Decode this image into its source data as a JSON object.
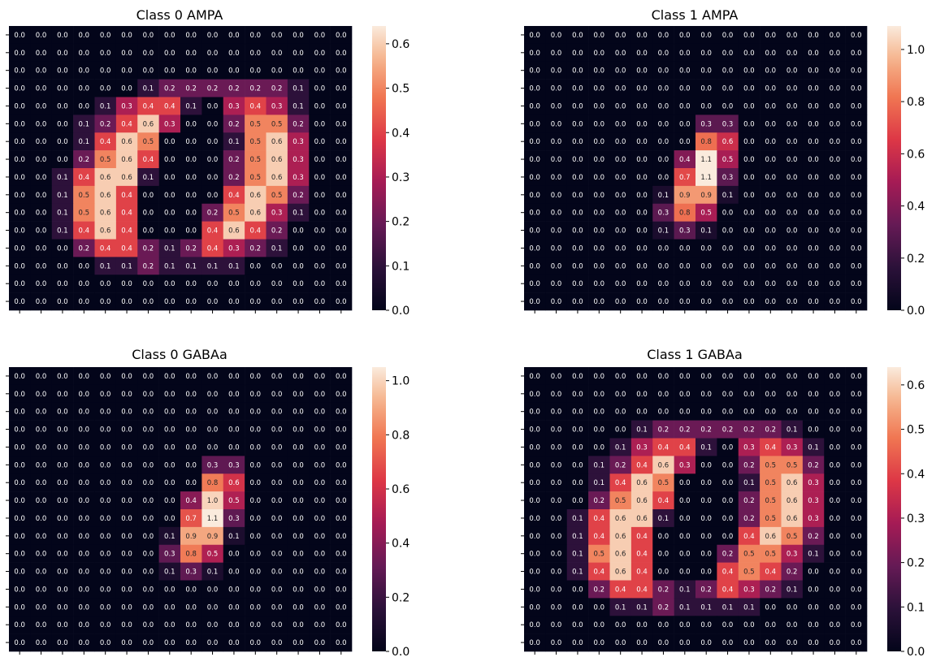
{
  "chart_data": [
    {
      "type": "heatmap",
      "title": "Class 0 AMPA",
      "colormap": "rocket",
      "vmin": 0.0,
      "vmax": 0.64,
      "colorbar_ticks": [
        0.0,
        0.1,
        0.2,
        0.3,
        0.4,
        0.5,
        0.6
      ],
      "colorbar_tick_labels": [
        "0.0",
        "0.1",
        "0.2",
        "0.3",
        "0.4",
        "0.5",
        "0.6"
      ],
      "values": [
        [
          0,
          0,
          0,
          0,
          0,
          0,
          0,
          0,
          0,
          0,
          0,
          0,
          0,
          0,
          0,
          0
        ],
        [
          0,
          0,
          0,
          0,
          0,
          0,
          0,
          0,
          0,
          0,
          0,
          0,
          0,
          0,
          0,
          0
        ],
        [
          0,
          0,
          0,
          0,
          0,
          0,
          0,
          0,
          0,
          0,
          0,
          0,
          0,
          0,
          0,
          0
        ],
        [
          0,
          0,
          0,
          0,
          0,
          0,
          0.1,
          0.2,
          0.2,
          0.2,
          0.2,
          0.2,
          0.2,
          0.1,
          0,
          0
        ],
        [
          0,
          0,
          0,
          0,
          0.1,
          0.3,
          0.4,
          0.4,
          0.1,
          0,
          0.3,
          0.4,
          0.3,
          0.1,
          0,
          0
        ],
        [
          0,
          0,
          0,
          0.1,
          0.2,
          0.4,
          0.6,
          0.3,
          0,
          0,
          0.2,
          0.5,
          0.5,
          0.2,
          0,
          0
        ],
        [
          0,
          0,
          0,
          0.1,
          0.4,
          0.6,
          0.5,
          0,
          0,
          0,
          0.1,
          0.5,
          0.6,
          0.3,
          0,
          0
        ],
        [
          0,
          0,
          0,
          0.2,
          0.5,
          0.6,
          0.4,
          0,
          0,
          0,
          0.2,
          0.5,
          0.6,
          0.3,
          0,
          0
        ],
        [
          0,
          0,
          0.1,
          0.4,
          0.6,
          0.6,
          0.1,
          0,
          0,
          0,
          0.2,
          0.5,
          0.6,
          0.3,
          0,
          0
        ],
        [
          0,
          0,
          0.1,
          0.5,
          0.6,
          0.4,
          0,
          0,
          0,
          0,
          0.4,
          0.6,
          0.5,
          0.2,
          0,
          0
        ],
        [
          0,
          0,
          0.1,
          0.5,
          0.6,
          0.4,
          0,
          0,
          0,
          0.2,
          0.5,
          0.6,
          0.3,
          0.1,
          0,
          0
        ],
        [
          0,
          0,
          0.1,
          0.4,
          0.6,
          0.4,
          0,
          0,
          0,
          0.4,
          0.6,
          0.4,
          0.2,
          0,
          0,
          0
        ],
        [
          0,
          0,
          0,
          0.2,
          0.4,
          0.4,
          0.2,
          0.1,
          0.2,
          0.4,
          0.3,
          0.2,
          0.1,
          0,
          0,
          0
        ],
        [
          0,
          0,
          0,
          0,
          0.1,
          0.1,
          0.2,
          0.1,
          0.1,
          0.1,
          0.1,
          0,
          0,
          0,
          0,
          0
        ],
        [
          0,
          0,
          0,
          0,
          0,
          0,
          0,
          0,
          0,
          0,
          0,
          0,
          0,
          0,
          0,
          0
        ],
        [
          0,
          0,
          0,
          0,
          0,
          0,
          0,
          0,
          0,
          0,
          0,
          0,
          0,
          0,
          0,
          0
        ]
      ]
    },
    {
      "type": "heatmap",
      "title": "Class 1 AMPA",
      "colormap": "rocket",
      "vmin": 0.0,
      "vmax": 1.09,
      "colorbar_ticks": [
        0.0,
        0.2,
        0.4,
        0.6,
        0.8,
        1.0
      ],
      "colorbar_tick_labels": [
        "0.0",
        "0.2",
        "0.4",
        "0.6",
        "0.8",
        "1.0"
      ],
      "values": [
        [
          0,
          0,
          0,
          0,
          0,
          0,
          0,
          0,
          0,
          0,
          0,
          0,
          0,
          0,
          0,
          0
        ],
        [
          0,
          0,
          0,
          0,
          0,
          0,
          0,
          0,
          0,
          0,
          0,
          0,
          0,
          0,
          0,
          0
        ],
        [
          0,
          0,
          0,
          0,
          0,
          0,
          0,
          0,
          0,
          0,
          0,
          0,
          0,
          0,
          0,
          0
        ],
        [
          0,
          0,
          0,
          0,
          0,
          0,
          0,
          0,
          0,
          0,
          0,
          0,
          0,
          0,
          0,
          0
        ],
        [
          0,
          0,
          0,
          0,
          0,
          0,
          0,
          0,
          0,
          0,
          0,
          0,
          0,
          0,
          0,
          0
        ],
        [
          0,
          0,
          0,
          0,
          0,
          0,
          0,
          0,
          0.3,
          0.3,
          0,
          0,
          0,
          0,
          0,
          0
        ],
        [
          0,
          0,
          0,
          0,
          0,
          0,
          0,
          0,
          0.8,
          0.6,
          0,
          0,
          0,
          0,
          0,
          0
        ],
        [
          0,
          0,
          0,
          0,
          0,
          0,
          0,
          0.4,
          1.1,
          0.5,
          0,
          0,
          0,
          0,
          0,
          0
        ],
        [
          0,
          0,
          0,
          0,
          0,
          0,
          0,
          0.7,
          1.1,
          0.3,
          0,
          0,
          0,
          0,
          0,
          0
        ],
        [
          0,
          0,
          0,
          0,
          0,
          0,
          0.1,
          0.9,
          0.9,
          0.1,
          0,
          0,
          0,
          0,
          0,
          0
        ],
        [
          0,
          0,
          0,
          0,
          0,
          0,
          0.3,
          0.8,
          0.5,
          0,
          0,
          0,
          0,
          0,
          0,
          0
        ],
        [
          0,
          0,
          0,
          0,
          0,
          0,
          0.1,
          0.3,
          0.1,
          0,
          0,
          0,
          0,
          0,
          0,
          0
        ],
        [
          0,
          0,
          0,
          0,
          0,
          0,
          0,
          0,
          0,
          0,
          0,
          0,
          0,
          0,
          0,
          0
        ],
        [
          0,
          0,
          0,
          0,
          0,
          0,
          0,
          0,
          0,
          0,
          0,
          0,
          0,
          0,
          0,
          0
        ],
        [
          0,
          0,
          0,
          0,
          0,
          0,
          0,
          0,
          0,
          0,
          0,
          0,
          0,
          0,
          0,
          0
        ],
        [
          0,
          0,
          0,
          0,
          0,
          0,
          0,
          0,
          0,
          0,
          0,
          0,
          0,
          0,
          0,
          0
        ]
      ]
    },
    {
      "type": "heatmap",
      "title": "Class 0 GABAa",
      "colormap": "rocket",
      "vmin": 0.0,
      "vmax": 1.05,
      "colorbar_ticks": [
        0.0,
        0.2,
        0.4,
        0.6,
        0.8,
        1.0
      ],
      "colorbar_tick_labels": [
        "0.0",
        "0.2",
        "0.4",
        "0.6",
        "0.8",
        "1.0"
      ],
      "values": [
        [
          0,
          0,
          0,
          0,
          0,
          0,
          0,
          0,
          0,
          0,
          0,
          0,
          0,
          0,
          0,
          0
        ],
        [
          0,
          0,
          0,
          0,
          0,
          0,
          0,
          0,
          0,
          0,
          0,
          0,
          0,
          0,
          0,
          0
        ],
        [
          0,
          0,
          0,
          0,
          0,
          0,
          0,
          0,
          0,
          0,
          0,
          0,
          0,
          0,
          0,
          0
        ],
        [
          0,
          0,
          0,
          0,
          0,
          0,
          0,
          0,
          0,
          0,
          0,
          0,
          0,
          0,
          0,
          0
        ],
        [
          0,
          0,
          0,
          0,
          0,
          0,
          0,
          0,
          0,
          0,
          0,
          0,
          0,
          0,
          0,
          0
        ],
        [
          0,
          0,
          0,
          0,
          0,
          0,
          0,
          0,
          0,
          0.3,
          0.3,
          0,
          0,
          0,
          0,
          0
        ],
        [
          0,
          0,
          0,
          0,
          0,
          0,
          0,
          0,
          0,
          0.8,
          0.6,
          0,
          0,
          0,
          0,
          0
        ],
        [
          0,
          0,
          0,
          0,
          0,
          0,
          0,
          0,
          0.4,
          1.0,
          0.5,
          0,
          0,
          0,
          0,
          0
        ],
        [
          0,
          0,
          0,
          0,
          0,
          0,
          0,
          0,
          0.7,
          1.1,
          0.3,
          0,
          0,
          0,
          0,
          0
        ],
        [
          0,
          0,
          0,
          0,
          0,
          0,
          0,
          0.1,
          0.9,
          0.9,
          0.1,
          0,
          0,
          0,
          0,
          0
        ],
        [
          0,
          0,
          0,
          0,
          0,
          0,
          0,
          0.3,
          0.8,
          0.5,
          0,
          0,
          0,
          0,
          0,
          0
        ],
        [
          0,
          0,
          0,
          0,
          0,
          0,
          0,
          0.1,
          0.3,
          0.1,
          0,
          0,
          0,
          0,
          0,
          0
        ],
        [
          0,
          0,
          0,
          0,
          0,
          0,
          0,
          0,
          0,
          0,
          0,
          0,
          0,
          0,
          0,
          0
        ],
        [
          0,
          0,
          0,
          0,
          0,
          0,
          0,
          0,
          0,
          0,
          0,
          0,
          0,
          0,
          0,
          0
        ],
        [
          0,
          0,
          0,
          0,
          0,
          0,
          0,
          0,
          0,
          0,
          0,
          0,
          0,
          0,
          0,
          0
        ],
        [
          0,
          0,
          0,
          0,
          0,
          0,
          0,
          0,
          0,
          0,
          0,
          0,
          0,
          0,
          0,
          0
        ]
      ]
    },
    {
      "type": "heatmap",
      "title": "Class 1 GABAa",
      "colormap": "rocket",
      "vmin": 0.0,
      "vmax": 0.64,
      "colorbar_ticks": [
        0.0,
        0.1,
        0.2,
        0.3,
        0.4,
        0.5,
        0.6
      ],
      "colorbar_tick_labels": [
        "0.0",
        "0.1",
        "0.2",
        "0.3",
        "0.4",
        "0.5",
        "0.6"
      ],
      "values": [
        [
          0,
          0,
          0,
          0,
          0,
          0,
          0,
          0,
          0,
          0,
          0,
          0,
          0,
          0,
          0,
          0
        ],
        [
          0,
          0,
          0,
          0,
          0,
          0,
          0,
          0,
          0,
          0,
          0,
          0,
          0,
          0,
          0,
          0
        ],
        [
          0,
          0,
          0,
          0,
          0,
          0,
          0,
          0,
          0,
          0,
          0,
          0,
          0,
          0,
          0,
          0
        ],
        [
          0,
          0,
          0,
          0,
          0,
          0.1,
          0.2,
          0.2,
          0.2,
          0.2,
          0.2,
          0.2,
          0.1,
          0,
          0,
          0
        ],
        [
          0,
          0,
          0,
          0,
          0.1,
          0.3,
          0.4,
          0.4,
          0.1,
          0,
          0.3,
          0.4,
          0.3,
          0.1,
          0,
          0
        ],
        [
          0,
          0,
          0,
          0.1,
          0.2,
          0.4,
          0.6,
          0.3,
          0,
          0,
          0.2,
          0.5,
          0.5,
          0.2,
          0,
          0
        ],
        [
          0,
          0,
          0,
          0.1,
          0.4,
          0.6,
          0.5,
          0,
          0,
          0,
          0.1,
          0.5,
          0.6,
          0.3,
          0,
          0
        ],
        [
          0,
          0,
          0,
          0.2,
          0.5,
          0.6,
          0.4,
          0,
          0,
          0,
          0.2,
          0.5,
          0.6,
          0.3,
          0,
          0
        ],
        [
          0,
          0,
          0.1,
          0.4,
          0.6,
          0.6,
          0.1,
          0,
          0,
          0,
          0.2,
          0.5,
          0.6,
          0.3,
          0,
          0
        ],
        [
          0,
          0,
          0.1,
          0.4,
          0.6,
          0.4,
          0,
          0,
          0,
          0,
          0.4,
          0.6,
          0.5,
          0.2,
          0,
          0
        ],
        [
          0,
          0,
          0.1,
          0.5,
          0.6,
          0.4,
          0,
          0,
          0,
          0.2,
          0.5,
          0.5,
          0.3,
          0.1,
          0,
          0
        ],
        [
          0,
          0,
          0.1,
          0.4,
          0.6,
          0.4,
          0,
          0,
          0,
          0.4,
          0.5,
          0.4,
          0.2,
          0,
          0,
          0
        ],
        [
          0,
          0,
          0,
          0.2,
          0.4,
          0.4,
          0.2,
          0.1,
          0.2,
          0.4,
          0.3,
          0.2,
          0.1,
          0,
          0,
          0
        ],
        [
          0,
          0,
          0,
          0,
          0.1,
          0.1,
          0.2,
          0.1,
          0.1,
          0.1,
          0.1,
          0,
          0,
          0,
          0,
          0
        ],
        [
          0,
          0,
          0,
          0,
          0,
          0,
          0,
          0,
          0,
          0,
          0,
          0,
          0,
          0,
          0,
          0
        ],
        [
          0,
          0,
          0,
          0,
          0,
          0,
          0,
          0,
          0,
          0,
          0,
          0,
          0,
          0,
          0,
          0
        ]
      ]
    }
  ]
}
